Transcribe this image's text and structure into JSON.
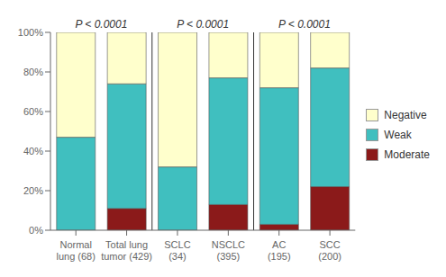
{
  "chart_data": {
    "type": "bar",
    "stacked": true,
    "categories": [
      "Normal\nlung (68)",
      "Total lung\ntumor (429)",
      "SCLC\n(34)",
      "NSCLC\n(395)",
      "AC\n(195)",
      "SCC\n(200)"
    ],
    "series": [
      {
        "name": "Moderate",
        "color": "#8B1A1A",
        "values": [
          0,
          11,
          0,
          13,
          3,
          22
        ]
      },
      {
        "name": "Weak",
        "color": "#40BFBF",
        "values": [
          47,
          63,
          32,
          64,
          69,
          60
        ]
      },
      {
        "name": "Negative",
        "color": "#FFFFCC",
        "values": [
          53,
          26,
          68,
          23,
          28,
          18
        ]
      }
    ],
    "ylim": [
      0,
      100
    ],
    "yticks": [
      {
        "value": 0,
        "label": "0%"
      },
      {
        "value": 20,
        "label": "20%"
      },
      {
        "value": 40,
        "label": "40%"
      },
      {
        "value": 60,
        "label": "60%"
      },
      {
        "value": 80,
        "label": "80%"
      },
      {
        "value": 100,
        "label": "100%"
      }
    ],
    "annotations": [
      {
        "text": "P < 0.0001",
        "categories": [
          "Normal\nlung (68)",
          "Total lung\ntumor (429)"
        ]
      },
      {
        "text": "P < 0.0001",
        "categories": [
          "SCLC\n(34)",
          "NSCLC\n(395)"
        ]
      },
      {
        "text": "P < 0.0001",
        "categories": [
          "AC\n(195)",
          "SCC\n(200)"
        ]
      }
    ],
    "grid": false,
    "legend": "right"
  }
}
